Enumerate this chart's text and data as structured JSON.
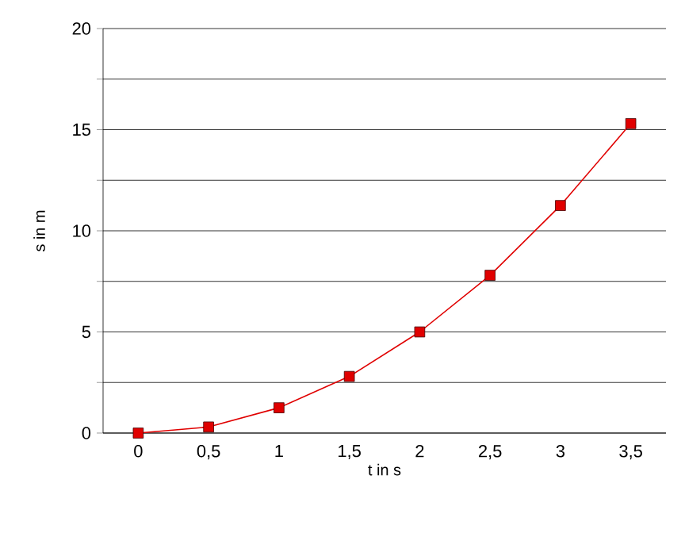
{
  "chart_data": {
    "type": "line",
    "xlabel": "t in s",
    "ylabel": "s in m",
    "categories": [
      "0",
      "0,5",
      "1",
      "1,5",
      "2",
      "2,5",
      "3",
      "3,5"
    ],
    "series": [
      {
        "color": "#e00000",
        "values": [
          0,
          0.3,
          1.25,
          2.8,
          5,
          7.8,
          11.25,
          15.3
        ]
      }
    ],
    "ylim": [
      0,
      20
    ],
    "yticks": [
      0,
      {
        "value": 2.5,
        "label": null
      },
      5,
      {
        "value": 7.5,
        "label": null
      },
      10,
      {
        "value": 12.5,
        "label": null
      },
      15,
      {
        "value": 17.5,
        "label": null
      },
      20
    ],
    "grid": "y",
    "marker": "square",
    "line_style": "solid"
  }
}
